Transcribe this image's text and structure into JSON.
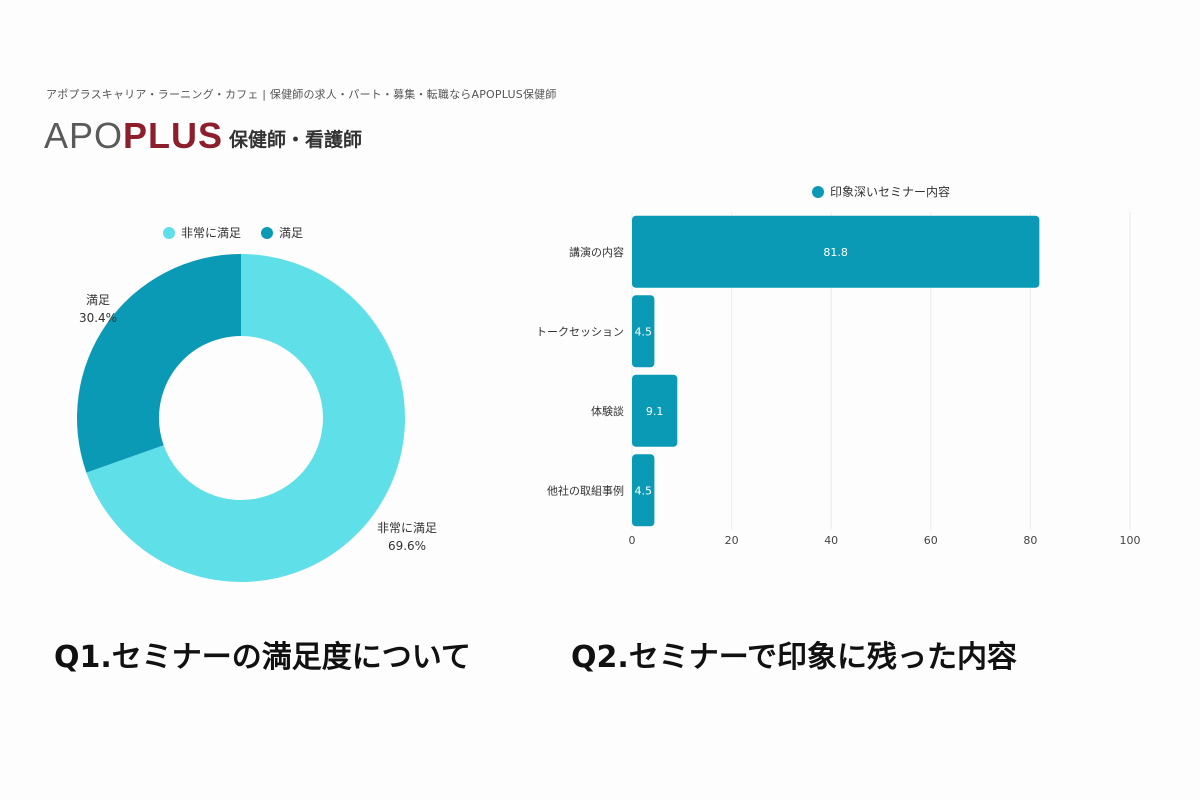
{
  "header": {
    "tagline": "アポプラスキャリア・ラーニング・カフェ | 保健師の求人・パート・募集・転職ならAPOPLUS保健師",
    "logo_apo": "APO",
    "logo_plus": "PLUS",
    "logo_sub": "保健師・看護師"
  },
  "colors": {
    "light": "#5fdfe8",
    "dark": "#0a9ab6",
    "bar": "#0a9ab6"
  },
  "captions": {
    "q1": "Q1.セミナーの満足度について",
    "q2": "Q2.セミナーで印象に残った内容"
  },
  "chart_data": [
    {
      "type": "pie",
      "donut": true,
      "title": "Q1.セミナーの満足度について",
      "legend": [
        "非常に満足",
        "満足"
      ],
      "slices": [
        {
          "label": "非常に満足",
          "value": 69.6,
          "display": "69.6%"
        },
        {
          "label": "満足",
          "value": 30.4,
          "display": "30.4%"
        }
      ]
    },
    {
      "type": "bar",
      "orientation": "horizontal",
      "title": "Q2.セミナーで印象に残った内容",
      "legend": [
        "印象深いセミナー内容"
      ],
      "categories": [
        "講演の内容",
        "トークセッション",
        "体験談",
        "他社の取組事例"
      ],
      "values": [
        81.8,
        4.5,
        9.1,
        4.5
      ],
      "value_labels": [
        "81.8",
        "4.5",
        "9.1",
        "4.5"
      ],
      "xlim": [
        0,
        100
      ],
      "xticks": [
        "0",
        "20",
        "40",
        "60",
        "80",
        "100"
      ]
    }
  ]
}
